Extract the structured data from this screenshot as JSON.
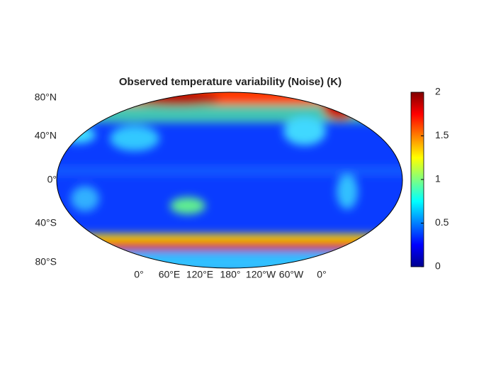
{
  "map": {
    "title": "Observed temperature variability (Noise) (K)",
    "lat_labels": [
      "80°N",
      "40°N",
      "0°",
      "40°S",
      "80°S"
    ],
    "lon_labels": [
      "0°",
      "60°E",
      "120°E",
      "180°",
      "120°W",
      "60°W",
      "0°"
    ],
    "colorbar": {
      "colormap": "jet",
      "clim": [
        0,
        2
      ],
      "ticks": [
        0,
        0.5,
        1,
        1.5,
        2
      ]
    }
  }
}
